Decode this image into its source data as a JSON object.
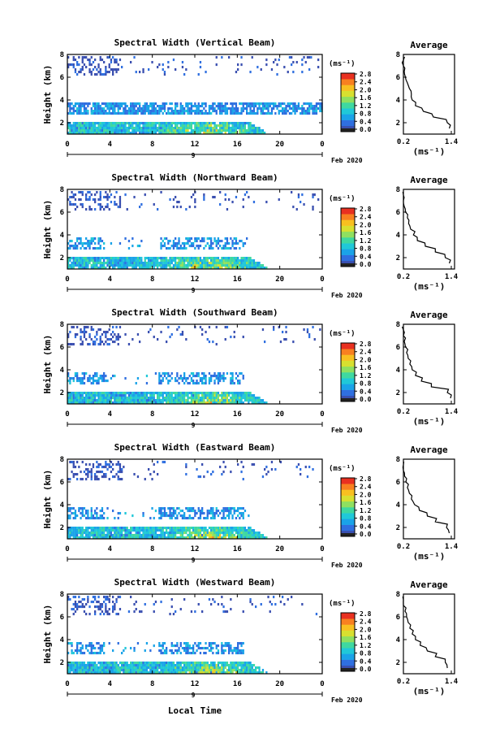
{
  "figure": {
    "bottom_xlabel": "Local Time",
    "colorbar_label": "(ms⁻¹)",
    "colorbar_ticks": [
      "0.0",
      "0.4",
      "0.8",
      "1.2",
      "1.6",
      "2.0",
      "2.4",
      "2.8"
    ],
    "colorbar_colors": [
      "#3a4fb0",
      "#2f6fe0",
      "#1aa3e8",
      "#20c8d8",
      "#3fd8a0",
      "#8fe060",
      "#d8e030",
      "#f8c020",
      "#f88020",
      "#e83020"
    ],
    "avg_title": "Average",
    "avg_xlabel": "(ms⁻¹)",
    "avg_xticks": [
      "0.2",
      "1.4"
    ],
    "avg_yticks": [
      "2",
      "4",
      "6",
      "8"
    ]
  },
  "chart_data": [
    {
      "type": "heatmap",
      "title": "Spectral Width (Vertical Beam)",
      "ylabel": "Height (km)",
      "yticks": [
        "2",
        "4",
        "6",
        "8"
      ],
      "xticks": [
        "0",
        "4",
        "8",
        "12",
        "16",
        "20",
        "0"
      ],
      "date_labels": [
        "9",
        "Feb 2020"
      ],
      "ylim": [
        1,
        8
      ],
      "xlim": [
        0,
        24
      ],
      "clim": [
        0,
        2.8
      ],
      "profile": {
        "title": "Average",
        "xlabel": "(ms⁻¹)",
        "xlim": [
          0.2,
          1.4
        ],
        "ylim": [
          1,
          8
        ],
        "height": [
          1.5,
          2.0,
          2.5,
          3.0,
          3.5,
          4.0,
          4.5,
          5.0,
          5.5,
          6.0,
          6.5,
          7.0,
          7.5
        ],
        "width": [
          1.35,
          1.3,
          0.95,
          0.7,
          0.5,
          0.42,
          0.4,
          0.35,
          0.3,
          0.25,
          0.22,
          0.2,
          0.2
        ]
      }
    },
    {
      "type": "heatmap",
      "title": "Spectral Width (Northward Beam)",
      "ylabel": "Height (km)",
      "yticks": [
        "2",
        "4",
        "6",
        "8"
      ],
      "xticks": [
        "0",
        "4",
        "8",
        "12",
        "16",
        "20",
        "0"
      ],
      "date_labels": [
        "9",
        "Feb 2020"
      ],
      "ylim": [
        1,
        8
      ],
      "xlim": [
        0,
        24
      ],
      "clim": [
        0,
        2.8
      ],
      "profile": {
        "title": "Average",
        "xlabel": "(ms⁻¹)",
        "xlim": [
          0.2,
          1.4
        ],
        "ylim": [
          1,
          8
        ],
        "height": [
          1.5,
          2.0,
          2.5,
          3.0,
          3.5,
          4.0,
          4.5,
          5.0,
          5.5,
          6.0,
          6.5,
          7.0,
          7.5
        ],
        "width": [
          1.35,
          1.25,
          1.0,
          0.75,
          0.55,
          0.45,
          0.38,
          0.33,
          0.3,
          0.25,
          0.22,
          0.2,
          0.2
        ]
      }
    },
    {
      "type": "heatmap",
      "title": "Spectral Width (Southward Beam)",
      "ylabel": "Height (km)",
      "yticks": [
        "2",
        "4",
        "6",
        "8"
      ],
      "xticks": [
        "0",
        "4",
        "8",
        "12",
        "16",
        "20",
        "0"
      ],
      "date_labels": [
        "9",
        "Feb 2020"
      ],
      "ylim": [
        1,
        8
      ],
      "xlim": [
        0,
        24
      ],
      "clim": [
        0,
        2.8
      ],
      "profile": {
        "title": "Average",
        "xlabel": "(ms⁻¹)",
        "xlim": [
          0.2,
          1.4
        ],
        "ylim": [
          1,
          8
        ],
        "height": [
          1.5,
          2.0,
          2.5,
          3.0,
          3.5,
          4.0,
          4.5,
          5.0,
          5.5,
          6.0,
          6.5,
          7.0,
          7.5
        ],
        "width": [
          1.38,
          1.3,
          0.9,
          0.65,
          0.5,
          0.42,
          0.36,
          0.32,
          0.28,
          0.25,
          0.22,
          0.2,
          0.2
        ]
      }
    },
    {
      "type": "heatmap",
      "title": "Spectral Width (Eastward Beam)",
      "ylabel": "Height (km)",
      "yticks": [
        "2",
        "4",
        "6",
        "8"
      ],
      "xticks": [
        "0",
        "4",
        "8",
        "12",
        "16",
        "20",
        "0"
      ],
      "date_labels": [
        "9",
        "Feb 2020"
      ],
      "ylim": [
        1,
        8
      ],
      "xlim": [
        0,
        24
      ],
      "clim": [
        0,
        2.8
      ],
      "profile": {
        "title": "Average",
        "xlabel": "(ms⁻¹)",
        "xlim": [
          0.2,
          1.4
        ],
        "ylim": [
          1,
          8
        ],
        "height": [
          1.5,
          2.0,
          2.5,
          3.0,
          3.5,
          4.0,
          4.5,
          5.0,
          5.5,
          6.0,
          6.5,
          7.0,
          7.5
        ],
        "width": [
          1.35,
          1.28,
          1.0,
          0.8,
          0.6,
          0.48,
          0.4,
          0.35,
          0.3,
          0.26,
          0.23,
          0.2,
          0.2
        ]
      }
    },
    {
      "type": "heatmap",
      "title": "Spectral Width (Westward Beam)",
      "ylabel": "Height (km)",
      "yticks": [
        "2",
        "4",
        "6",
        "8"
      ],
      "xticks": [
        "0",
        "4",
        "8",
        "12",
        "16",
        "20",
        "0"
      ],
      "date_labels": [
        "9",
        "Feb 2020"
      ],
      "ylim": [
        1,
        8
      ],
      "xlim": [
        0,
        24
      ],
      "clim": [
        0,
        2.8
      ],
      "profile": {
        "title": "Average",
        "xlabel": "(ms⁻¹)",
        "xlim": [
          0.2,
          1.4
        ],
        "ylim": [
          1,
          8
        ],
        "height": [
          1.5,
          2.0,
          2.5,
          3.0,
          3.5,
          4.0,
          4.5,
          5.0,
          5.5,
          6.0,
          6.5,
          7.0,
          7.5
        ],
        "width": [
          1.3,
          1.25,
          1.0,
          0.8,
          0.62,
          0.5,
          0.42,
          0.36,
          0.32,
          0.28,
          0.24,
          0.2,
          0.2
        ]
      }
    }
  ]
}
